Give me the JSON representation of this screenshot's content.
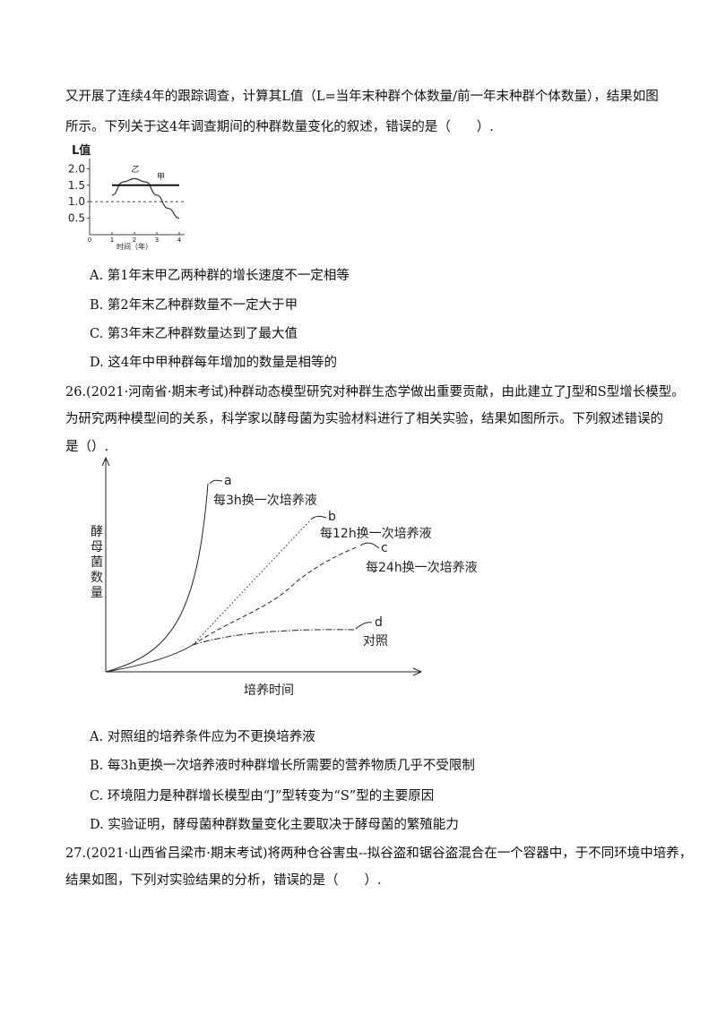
{
  "q25": {
    "lines": [
      "又开展了连续4年的跟踪调查，计算其L值（L=当年末种群个体数量/前一年末种群个体数量），结果如图",
      "所示。下列关于这4年调查期间的种群数量变化的叙述，错误的是（　　）."
    ],
    "options": [
      "A. 第1年末甲乙两种群的增长速度不一定相等",
      "B. 第2年末乙种群数量不一定大于甲",
      "C. 第3年末乙种群数量达到了最大值",
      "D. 这4年中甲种群每年增加的数量是相等的"
    ]
  },
  "chart_data": {
    "type": "line",
    "ylabel": "L值",
    "xlabel": "时间（年）",
    "x": [
      1,
      1.5,
      2,
      2.5,
      3,
      3.5,
      4
    ],
    "series": [
      {
        "name": "乙",
        "color": "#333333",
        "values": [
          1.2,
          1.6,
          1.7,
          1.6,
          1.2,
          0.8,
          0.5
        ]
      },
      {
        "name": "甲",
        "color": "#111111",
        "values": [
          1.5,
          1.5,
          1.5,
          1.5,
          1.5,
          1.5,
          1.5
        ]
      }
    ],
    "xlim": [
      0,
      4
    ],
    "xticks": [
      0,
      1,
      2,
      3,
      4
    ],
    "ylim": [
      0,
      2.2
    ],
    "yticks": [
      {
        "value": 2,
        "label": "2.0"
      },
      {
        "value": 1.5,
        "label": "1.5"
      },
      {
        "value": 1,
        "label": "1.0"
      },
      {
        "value": 0.5,
        "label": "0.5"
      }
    ],
    "reference_line": 1
  },
  "q26": {
    "lines": [
      "26.(2021·河南省·期末考试)种群动态模型研究对种群生态学做出重要贡献，由此建立了J型和S型增长模型。",
      "为研究两种模型间的关系，科学家以酵母菌为实验材料进行了相关实验，结果如图所示。下列叙述错误的",
      "是（）."
    ],
    "figure": {
      "ylabel": "酵母菌数量",
      "xlabel": "培养时间",
      "curves": [
        "a",
        "b",
        "c",
        "d"
      ],
      "notes": [
        "每3h换一次培养液",
        "每12h换一次培养液",
        "每24h换一次培养液",
        "对照"
      ]
    },
    "options": [
      "A. 对照组的培养条件应为不更换培养液",
      "B. 每3h更换一次培养液时种群增长所需要的营养物质几乎不受限制",
      "C. 环境阻力是种群增长模型由“J”型转变为“S”型的主要原因",
      "D. 实验证明，酵母菌种群数量变化主要取决于酵母菌的繁殖能力"
    ]
  },
  "q27": {
    "lines": [
      "27.(2021·山西省吕梁市·期末考试)将两种仓谷害虫--拟谷盗和锯谷盗混合在一个容器中，于不同环境中培养，",
      "结果如图，下列对实验结果的分析，错误的是（　　）."
    ]
  }
}
